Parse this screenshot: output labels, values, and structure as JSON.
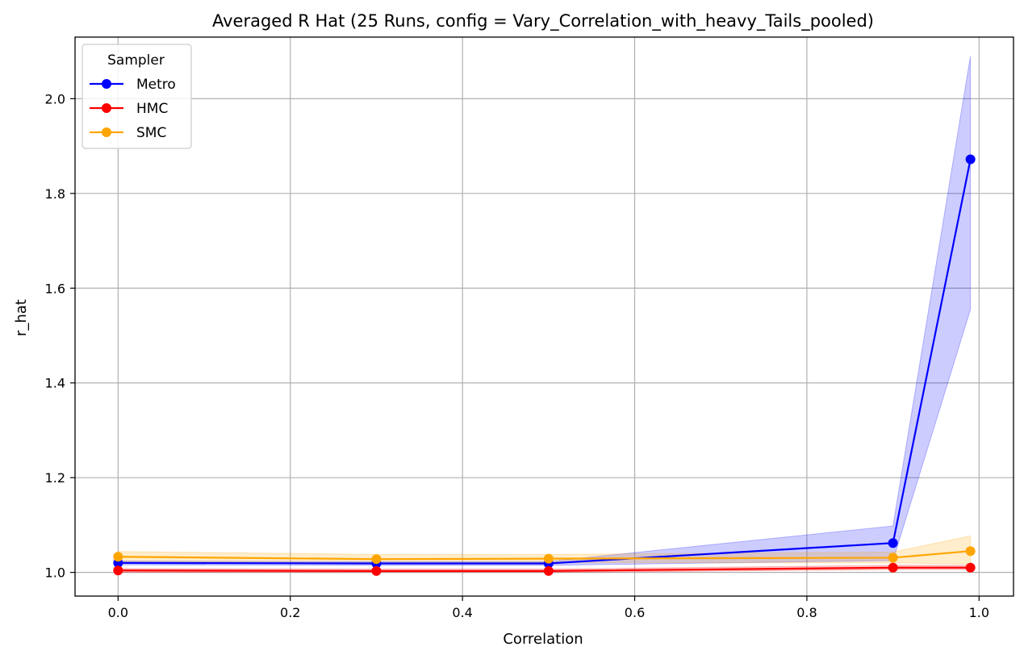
{
  "chart_data": {
    "type": "line",
    "title": "Averaged R Hat (25 Runs, config = Vary_Correlation_with_heavy_Tails_pooled)",
    "xlabel": "Correlation",
    "ylabel": "r_hat",
    "xlim": [
      -0.05,
      1.04
    ],
    "ylim": [
      0.95,
      2.13
    ],
    "xticks": [
      0.0,
      0.2,
      0.4,
      0.6,
      0.8,
      1.0
    ],
    "xtick_labels": [
      "0.0",
      "0.2",
      "0.4",
      "0.6",
      "0.8",
      "1.0"
    ],
    "yticks": [
      1.0,
      1.2,
      1.4,
      1.6,
      1.8,
      2.0
    ],
    "ytick_labels": [
      "1.0",
      "1.2",
      "1.4",
      "1.6",
      "1.8",
      "2.0"
    ],
    "grid": true,
    "legend": {
      "title": "Sampler",
      "position": "top-left"
    },
    "x": [
      0.0,
      0.3,
      0.5,
      0.9,
      0.99
    ],
    "series": [
      {
        "name": "Metro",
        "color": "#0000ff",
        "values": [
          1.02,
          1.019,
          1.019,
          1.062,
          1.872
        ],
        "band_low": [
          1.016,
          1.015,
          1.015,
          1.025,
          1.555
        ],
        "band_high": [
          1.024,
          1.023,
          1.023,
          1.098,
          2.09
        ]
      },
      {
        "name": "HMC",
        "color": "#ff0000",
        "values": [
          1.004,
          1.003,
          1.003,
          1.01,
          1.01
        ],
        "band_low": [
          1.0,
          1.0,
          1.0,
          1.006,
          1.006
        ],
        "band_high": [
          1.008,
          1.007,
          1.007,
          1.015,
          1.015
        ]
      },
      {
        "name": "SMC",
        "color": "#ffa500",
        "values": [
          1.033,
          1.028,
          1.029,
          1.031,
          1.045
        ],
        "band_low": [
          1.022,
          1.02,
          1.021,
          1.02,
          1.018
        ],
        "band_high": [
          1.044,
          1.038,
          1.038,
          1.043,
          1.077
        ]
      }
    ]
  }
}
